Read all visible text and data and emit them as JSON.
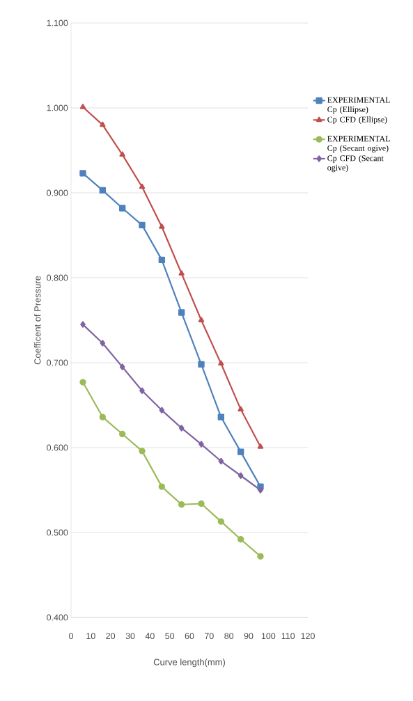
{
  "chart_data": {
    "type": "line",
    "xlabel": "Curve length(mm)",
    "ylabel": "Coefficent of Pressure",
    "x": [
      6,
      16,
      26,
      36,
      46,
      56,
      66,
      76,
      86,
      96
    ],
    "series": [
      {
        "name": "EXPERIMENTAL Cp (Ellipse)",
        "color": "#4f81bd",
        "marker": "square",
        "values": [
          0.923,
          0.903,
          0.882,
          0.862,
          0.821,
          0.759,
          0.698,
          0.636,
          0.595,
          0.554
        ]
      },
      {
        "name": "Cp CFD (Ellipse)",
        "color": "#c0504d",
        "marker": "triangle",
        "values": [
          1.001,
          0.98,
          0.945,
          0.907,
          0.86,
          0.805,
          0.75,
          0.699,
          0.645,
          0.601
        ]
      },
      {
        "name": "EXPERIMENTAL Cp (Secant ogive)",
        "color": "#9bbb59",
        "marker": "circle",
        "values": [
          0.677,
          0.636,
          0.616,
          0.596,
          0.554,
          0.533,
          0.534,
          0.513,
          0.492,
          0.472
        ]
      },
      {
        "name": "Cp CFD (Secant ogive)",
        "color": "#8064a2",
        "marker": "diamond",
        "values": [
          0.745,
          0.723,
          0.695,
          0.667,
          0.644,
          0.623,
          0.604,
          0.584,
          0.567,
          0.55
        ]
      }
    ],
    "xlim": [
      0,
      120
    ],
    "xticks": [
      0,
      10,
      20,
      30,
      40,
      50,
      60,
      70,
      80,
      90,
      100,
      110,
      120
    ],
    "ylim": [
      0.4,
      1.1
    ],
    "yticks": [
      {
        "value": 0.4,
        "label": "0.400"
      },
      {
        "value": 0.5,
        "label": "0.500"
      },
      {
        "value": 0.6,
        "label": "0.600"
      },
      {
        "value": 0.7,
        "label": "0.700"
      },
      {
        "value": 0.8,
        "label": "0.800"
      },
      {
        "value": 0.9,
        "label": "0.900"
      },
      {
        "value": 1.0,
        "label": "1.000"
      },
      {
        "value": 1.1,
        "label": "1.100"
      }
    ],
    "grid": "y",
    "legend": "right",
    "line_style": "solid"
  }
}
